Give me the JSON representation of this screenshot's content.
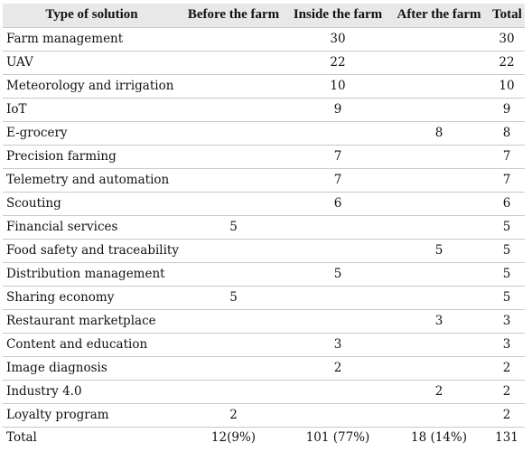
{
  "headers": [
    "Type of solution",
    "Before the farm",
    "Inside the farm",
    "After the farm",
    "Total"
  ],
  "rows": [
    {
      "name": "Farm management",
      "before": "",
      "inside": "30",
      "after": "",
      "total": "30"
    },
    {
      "name": "UAV",
      "before": "",
      "inside": "22",
      "after": "",
      "total": "22"
    },
    {
      "name": "Meteorology and irrigation",
      "before": "",
      "inside": "10",
      "after": "",
      "total": "10"
    },
    {
      "name": "IoT",
      "before": "",
      "inside": "9",
      "after": "",
      "total": "9"
    },
    {
      "name": "E-grocery",
      "before": "",
      "inside": "",
      "after": "8",
      "total": "8"
    },
    {
      "name": "Precision farming",
      "before": "",
      "inside": "7",
      "after": "",
      "total": "7"
    },
    {
      "name": "Telemetry and automation",
      "before": "",
      "inside": "7",
      "after": "",
      "total": "7"
    },
    {
      "name": "Scouting",
      "before": "",
      "inside": "6",
      "after": "",
      "total": "6"
    },
    {
      "name": "Financial services",
      "before": "5",
      "inside": "",
      "after": "",
      "total": "5"
    },
    {
      "name": "Food safety and traceability",
      "before": "",
      "inside": "",
      "after": "5",
      "total": "5"
    },
    {
      "name": "Distribution management",
      "before": "",
      "inside": "5",
      "after": "",
      "total": "5"
    },
    {
      "name": "Sharing economy",
      "before": "5",
      "inside": "",
      "after": "",
      "total": "5"
    },
    {
      "name": "Restaurant marketplace",
      "before": "",
      "inside": "",
      "after": "3",
      "total": "3"
    },
    {
      "name": "Content and education",
      "before": "",
      "inside": "3",
      "after": "",
      "total": "3"
    },
    {
      "name": "Image diagnosis",
      "before": "",
      "inside": "2",
      "after": "",
      "total": "2"
    },
    {
      "name": "Industry 4.0",
      "before": "",
      "inside": "",
      "after": "2",
      "total": "2"
    },
    {
      "name": "Loyalty program",
      "before": "2",
      "inside": "",
      "after": "",
      "total": "2"
    }
  ],
  "totals": {
    "name": "Total",
    "before": "12(9%)",
    "inside": "101 (77%)",
    "after": "18 (14%)",
    "total": "131"
  }
}
